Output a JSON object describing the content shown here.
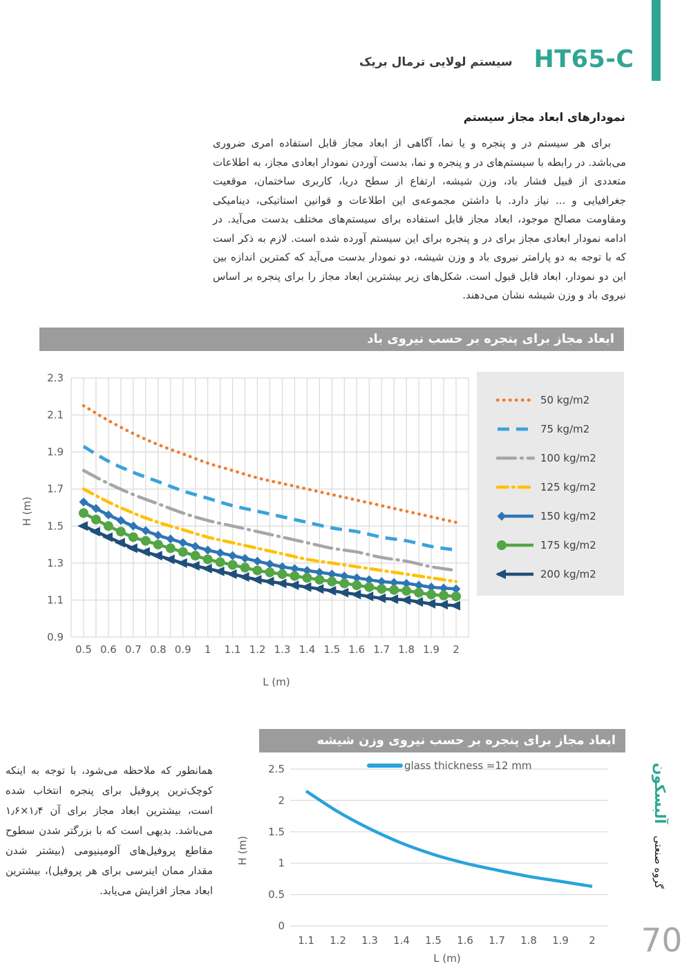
{
  "header": {
    "product_code": "HT65-C",
    "product_name": "سیستم لولایی ترمال بریک"
  },
  "section_heading": "نمودارهای ابعاد مجاز سیستم",
  "intro_paragraph": "برای هر سیستم در و پنجره و یا نما، آگاهی از ابعاد مجاز قابل استفاده امری ضروری می‌باشد. در رابطه با سیستم‌های در و پنجره و نما، بدست آوردن نمودار ابعادی مجاز، به اطلاعات متعددی از قبیل فشار باد، وزن شیشه، ارتفاع از سطح دریا، کاربری ساختمان، موقعیت جغرافیایی و ... نیاز دارد. با داشتن مجموعه‌ی این اطلاعات و قوانین استاتیکی، دینامیکی ومقاومت مصالح موجود، ابعاد مجاز قابل استفاده برای سیستم‌های مختلف بدست می‌آید. در ادامه نمودار ابعادی مجاز برای در و پنجره برای این سیستم آورده شده است. لازم به ذکر است که با توجه به دو پارامتر نیروی باد و وزن شیشه، دو نمودار بدست می‌آید که کمترین اندازه بین این دو نمودار، ابعاد قابل قبول است. شکل‌های زیر بیشترین ابعاد مجاز را برای پنجره بر اساس نیروی باد و وزن شیشه نشان می‌دهند.",
  "side_note": "همانطور که ملاحظه می‌شود، با توجه به اینکه کوچک‌ترین پروفیل برای پنجره انتخاب شده است، بیشترین ابعاد مجاز برای آن ۱٫۴×۱٫۶ می‌باشد. بدیهی است که با بزرگتر شدن سطوح مقاطع پروفیل‌های آلومینیومی (بیشتر شدن مقدار ممان اینرسی برای هر پروفیل)، بیشترین ابعاد مجاز افزایش می‌یابد.",
  "brand": {
    "group_label": "گروه صنعتی",
    "brand_name": "آلبسکون"
  },
  "page_number": "70",
  "colors": {
    "accent_teal": "#2FA693",
    "title_bar_gray": "#9C9C9C",
    "legend_bg": "#E9E9E9",
    "grid_gray": "#D9D9D9",
    "tick_gray": "#595959",
    "page_number_gray": "#A8A8A8"
  },
  "chart_data": [
    {
      "type": "line",
      "title": "ابعاد مجاز برای پنجره بر حسب نیروی باد",
      "xlabel": "L (m)",
      "ylabel": "H (m)",
      "xlim": [
        0.45,
        2.05
      ],
      "ylim": [
        0.9,
        2.3
      ],
      "x_grid_step": 0.05,
      "grid": "both",
      "legend_position": "right",
      "x_ticks": [
        0.5,
        0.6,
        0.7,
        0.8,
        0.9,
        1,
        1.1,
        1.2,
        1.3,
        1.4,
        1.5,
        1.6,
        1.7,
        1.8,
        1.9,
        2
      ],
      "y_ticks": [
        0.9,
        1.1,
        1.3,
        1.5,
        1.7,
        1.9,
        2.1,
        2.3
      ],
      "x": [
        0.5,
        0.6,
        0.7,
        0.8,
        0.9,
        1.0,
        1.1,
        1.2,
        1.3,
        1.4,
        1.5,
        1.6,
        1.7,
        1.8,
        1.9,
        2.0
      ],
      "series": [
        {
          "name": "50 kg/m2",
          "color": "#ED7D31",
          "style": "dotted",
          "marker": "none",
          "values": [
            2.15,
            2.07,
            2.0,
            1.94,
            1.89,
            1.84,
            1.8,
            1.76,
            1.73,
            1.7,
            1.67,
            1.64,
            1.61,
            1.58,
            1.55,
            1.52
          ]
        },
        {
          "name": "75 kg/m2",
          "color": "#3AA2DC",
          "style": "dashed",
          "marker": "none",
          "values": [
            1.93,
            1.85,
            1.79,
            1.74,
            1.69,
            1.65,
            1.61,
            1.58,
            1.55,
            1.52,
            1.49,
            1.47,
            1.44,
            1.42,
            1.39,
            1.37
          ]
        },
        {
          "name": "100 kg/m2",
          "color": "#A6A6A6",
          "style": "long-dash-dot",
          "marker": "none",
          "values": [
            1.8,
            1.73,
            1.67,
            1.62,
            1.57,
            1.53,
            1.5,
            1.47,
            1.44,
            1.41,
            1.38,
            1.36,
            1.33,
            1.31,
            1.28,
            1.26
          ]
        },
        {
          "name": "125 kg/m2",
          "color": "#FFC000",
          "style": "dash-dot",
          "marker": "none",
          "values": [
            1.7,
            1.63,
            1.57,
            1.52,
            1.48,
            1.44,
            1.41,
            1.38,
            1.35,
            1.32,
            1.3,
            1.28,
            1.26,
            1.24,
            1.22,
            1.2
          ]
        },
        {
          "name": "150 kg/m2",
          "color": "#2E75B6",
          "style": "solid",
          "marker": "diamond",
          "values": [
            1.63,
            1.56,
            1.5,
            1.45,
            1.41,
            1.37,
            1.34,
            1.31,
            1.28,
            1.26,
            1.24,
            1.22,
            1.2,
            1.19,
            1.17,
            1.16
          ]
        },
        {
          "name": "175 kg/m2",
          "color": "#53A546",
          "style": "solid",
          "marker": "circle",
          "values": [
            1.57,
            1.5,
            1.44,
            1.4,
            1.36,
            1.32,
            1.29,
            1.26,
            1.24,
            1.22,
            1.2,
            1.18,
            1.16,
            1.15,
            1.13,
            1.12
          ]
        },
        {
          "name": "200 kg/m2",
          "color": "#1F4E79",
          "style": "solid",
          "marker": "arrow-left",
          "values": [
            1.5,
            1.44,
            1.38,
            1.34,
            1.3,
            1.27,
            1.24,
            1.21,
            1.19,
            1.17,
            1.15,
            1.13,
            1.11,
            1.1,
            1.08,
            1.07
          ]
        }
      ]
    },
    {
      "type": "line",
      "title": "ابعاد مجاز برای پنجره بر حسب نیروی وزن شیشه",
      "xlabel": "L (m)",
      "ylabel": "H (m)",
      "xlim": [
        1.05,
        2.05
      ],
      "ylim": [
        0,
        2.5
      ],
      "grid": "horizontal",
      "legend_position": "top",
      "x_ticks": [
        1.1,
        1.2,
        1.3,
        1.4,
        1.5,
        1.6,
        1.7,
        1.8,
        1.9,
        2
      ],
      "y_ticks": [
        0,
        0.5,
        1,
        1.5,
        2,
        2.5
      ],
      "x": [
        1.1,
        1.2,
        1.3,
        1.4,
        1.5,
        1.6,
        1.7,
        1.8,
        1.9,
        2.0
      ],
      "series": [
        {
          "name": "glass thickness =12 mm",
          "color": "#29A3DC",
          "style": "solid",
          "marker": "none",
          "values": [
            2.15,
            1.82,
            1.55,
            1.32,
            1.14,
            1.0,
            0.89,
            0.79,
            0.71,
            0.63
          ]
        }
      ]
    }
  ]
}
